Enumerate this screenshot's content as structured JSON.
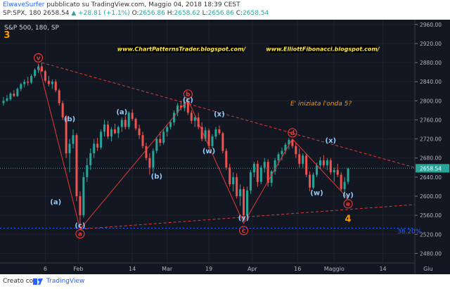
{
  "header": {
    "author": "ElwaveSurfer",
    "published": "pubblicato su TradingView.com, Maggio 04, 2018 18:39 CEST",
    "symbol": "SP:SPX, 180",
    "last": "2658.54",
    "change": "▲ +28.81 (+1.1%)",
    "o_label": "O:",
    "o": "2656.86",
    "h_label": "H:",
    "h": "2658.62",
    "l_label": "L:",
    "l": "2656.86",
    "c_label": "C:",
    "c": "2658.54"
  },
  "chart_data": {
    "type": "candlestick",
    "title": "S&P 500, 180, SP",
    "background": "#131722",
    "up_color": "#26a69a",
    "down_color": "#ef5350",
    "ylim": [
      2460,
      2970
    ],
    "y_ticks": [
      "2960.00",
      "2920.00",
      "2880.00",
      "2840.00",
      "2800.00",
      "2760.00",
      "2720.00",
      "2680.00",
      "2640.00",
      "2600.00",
      "2560.00",
      "2520.00",
      "2480.00"
    ],
    "y_tick_values": [
      2960,
      2920,
      2880,
      2840,
      2800,
      2760,
      2720,
      2680,
      2640,
      2600,
      2560,
      2520,
      2480
    ],
    "x_ticks": [
      "6",
      "Feb",
      "14",
      "Mar",
      "19",
      "Apr",
      "16",
      "Maggio",
      "14",
      "Giu"
    ],
    "x_tick_values": [
      6,
      15.5,
      31,
      41,
      53,
      65.5,
      78.5,
      89,
      103,
      116
    ],
    "last_price": "2658.54",
    "last_price_value": 2658.54,
    "fib_label": "38.20%",
    "fib_value": 2533,
    "links": [
      "www.ChartPatternsTrader.blogspot.com/",
      "www.ElliottFibonacci.blogspot.com/"
    ],
    "annotation": "E' iniziata l'onda 5?",
    "wave_labels": [
      {
        "text": "3",
        "x": -5,
        "y": 2932,
        "color": "#ff9800",
        "size": 13
      },
      {
        "text": "(b)",
        "x": 13,
        "y": 2757,
        "color": "#90caf9",
        "size": 10
      },
      {
        "text": "(a)",
        "x": 9,
        "y": 2583,
        "color": "#90caf9",
        "size": 10
      },
      {
        "text": "(c)",
        "x": 16,
        "y": 2534,
        "color": "#90caf9",
        "size": 10
      },
      {
        "text": "(a)",
        "x": 28,
        "y": 2772,
        "color": "#90caf9",
        "size": 10
      },
      {
        "text": "(b)",
        "x": 38,
        "y": 2637,
        "color": "#90caf9",
        "size": 10
      },
      {
        "text": "(c)",
        "x": 47,
        "y": 2797,
        "color": "#90caf9",
        "size": 10
      },
      {
        "text": "(x)",
        "x": 56,
        "y": 2767,
        "color": "#90caf9",
        "size": 10
      },
      {
        "text": "(w)",
        "x": 53,
        "y": 2690,
        "color": "#90caf9",
        "size": 10
      },
      {
        "text": "(y)",
        "x": 63,
        "y": 2550,
        "color": "#90caf9",
        "size": 10
      },
      {
        "text": "(x)",
        "x": 88,
        "y": 2712,
        "color": "#90caf9",
        "size": 10
      },
      {
        "text": "(w)",
        "x": 84,
        "y": 2602,
        "color": "#90caf9",
        "size": 10
      },
      {
        "text": "(y)",
        "x": 93,
        "y": 2598,
        "color": "#90caf9",
        "size": 10
      },
      {
        "text": "4",
        "x": 93,
        "y": 2546,
        "color": "#ff9800",
        "size": 13
      }
    ],
    "circle_labels": [
      {
        "text": "v",
        "x": 4,
        "y": 2890
      },
      {
        "text": "a",
        "x": 16,
        "y": 2521
      },
      {
        "text": "b",
        "x": 47,
        "y": 2814
      },
      {
        "text": "c",
        "x": 63,
        "y": 2528
      },
      {
        "text": "d",
        "x": 77,
        "y": 2733
      },
      {
        "text": "e",
        "x": 93,
        "y": 2584
      }
    ],
    "wave_path": [
      [
        4,
        2878
      ],
      [
        16,
        2531
      ],
      [
        47,
        2802
      ],
      [
        63,
        2543
      ],
      [
        77,
        2720
      ],
      [
        93,
        2595
      ]
    ],
    "resistance_line": [
      [
        5,
        2880
      ],
      [
        117,
        2650
      ]
    ],
    "support_line": [
      [
        16,
        2531
      ],
      [
        117,
        2585
      ]
    ],
    "candles": [
      [
        -6,
        2795,
        2808,
        2790,
        2800
      ],
      [
        -5,
        2800,
        2812,
        2798,
        2805
      ],
      [
        -4,
        2803,
        2818,
        2800,
        2815
      ],
      [
        -3,
        2815,
        2822,
        2808,
        2810
      ],
      [
        -2,
        2810,
        2828,
        2808,
        2825
      ],
      [
        -1,
        2825,
        2838,
        2820,
        2835
      ],
      [
        0,
        2835,
        2845,
        2828,
        2840
      ],
      [
        1,
        2840,
        2850,
        2832,
        2838
      ],
      [
        2,
        2838,
        2856,
        2835,
        2852
      ],
      [
        3,
        2852,
        2868,
        2848,
        2865
      ],
      [
        4,
        2865,
        2878,
        2858,
        2872
      ],
      [
        5,
        2872,
        2880,
        2860,
        2862
      ],
      [
        6,
        2862,
        2865,
        2838,
        2842
      ],
      [
        7,
        2842,
        2852,
        2830,
        2835
      ],
      [
        8,
        2835,
        2845,
        2825,
        2840
      ],
      [
        9,
        2840,
        2845,
        2818,
        2822
      ],
      [
        10,
        2822,
        2825,
        2790,
        2795
      ],
      [
        11,
        2795,
        2800,
        2760,
        2765
      ],
      [
        12,
        2765,
        2770,
        2680,
        2690
      ],
      [
        13,
        2690,
        2720,
        2650,
        2710
      ],
      [
        14,
        2710,
        2740,
        2700,
        2728
      ],
      [
        15,
        2728,
        2732,
        2590,
        2600
      ],
      [
        16,
        2600,
        2610,
        2532,
        2560
      ],
      [
        17,
        2560,
        2650,
        2555,
        2640
      ],
      [
        18,
        2640,
        2680,
        2630,
        2665
      ],
      [
        19,
        2665,
        2700,
        2655,
        2690
      ],
      [
        20,
        2690,
        2720,
        2680,
        2710
      ],
      [
        21,
        2710,
        2722,
        2695,
        2702
      ],
      [
        22,
        2702,
        2740,
        2698,
        2735
      ],
      [
        23,
        2735,
        2760,
        2725,
        2750
      ],
      [
        24,
        2750,
        2758,
        2720,
        2725
      ],
      [
        25,
        2725,
        2745,
        2715,
        2740
      ],
      [
        26,
        2740,
        2752,
        2730,
        2732
      ],
      [
        27,
        2732,
        2748,
        2722,
        2745
      ],
      [
        28,
        2745,
        2765,
        2735,
        2760
      ],
      [
        29,
        2760,
        2768,
        2740,
        2745
      ],
      [
        30,
        2745,
        2778,
        2740,
        2775
      ],
      [
        31,
        2775,
        2782,
        2758,
        2762
      ],
      [
        32,
        2762,
        2765,
        2738,
        2742
      ],
      [
        33,
        2742,
        2750,
        2720,
        2728
      ],
      [
        34,
        2728,
        2735,
        2700,
        2705
      ],
      [
        35,
        2705,
        2712,
        2675,
        2680
      ],
      [
        36,
        2680,
        2690,
        2645,
        2660
      ],
      [
        37,
        2660,
        2700,
        2650,
        2695
      ],
      [
        38,
        2695,
        2725,
        2690,
        2720
      ],
      [
        39,
        2720,
        2735,
        2705,
        2712
      ],
      [
        40,
        2712,
        2740,
        2708,
        2735
      ],
      [
        41,
        2735,
        2750,
        2725,
        2745
      ],
      [
        42,
        2745,
        2760,
        2740,
        2755
      ],
      [
        43,
        2755,
        2780,
        2748,
        2775
      ],
      [
        44,
        2775,
        2795,
        2768,
        2790
      ],
      [
        45,
        2790,
        2800,
        2780,
        2785
      ],
      [
        46,
        2785,
        2803,
        2778,
        2797
      ],
      [
        47,
        2797,
        2802,
        2770,
        2775
      ],
      [
        48,
        2775,
        2780,
        2752,
        2758
      ],
      [
        49,
        2758,
        2770,
        2745,
        2765
      ],
      [
        50,
        2765,
        2775,
        2740,
        2745
      ],
      [
        51,
        2745,
        2755,
        2715,
        2720
      ],
      [
        52,
        2720,
        2745,
        2715,
        2738
      ],
      [
        53,
        2738,
        2742,
        2700,
        2705
      ],
      [
        54,
        2705,
        2730,
        2700,
        2725
      ],
      [
        55,
        2725,
        2745,
        2720,
        2740
      ],
      [
        56,
        2740,
        2748,
        2728,
        2732
      ],
      [
        57,
        2732,
        2735,
        2690,
        2695
      ],
      [
        58,
        2695,
        2700,
        2655,
        2660
      ],
      [
        59,
        2660,
        2668,
        2620,
        2625
      ],
      [
        60,
        2625,
        2650,
        2610,
        2640
      ],
      [
        61,
        2640,
        2648,
        2595,
        2600
      ],
      [
        62,
        2600,
        2625,
        2580,
        2615
      ],
      [
        63,
        2615,
        2620,
        2548,
        2560
      ],
      [
        64,
        2560,
        2620,
        2555,
        2612
      ],
      [
        65,
        2612,
        2655,
        2605,
        2650
      ],
      [
        66,
        2650,
        2672,
        2640,
        2668
      ],
      [
        67,
        2668,
        2675,
        2620,
        2630
      ],
      [
        68,
        2630,
        2665,
        2625,
        2660
      ],
      [
        69,
        2660,
        2680,
        2650,
        2672
      ],
      [
        70,
        2672,
        2678,
        2620,
        2628
      ],
      [
        71,
        2628,
        2655,
        2620,
        2652
      ],
      [
        72,
        2652,
        2680,
        2645,
        2675
      ],
      [
        73,
        2675,
        2692,
        2665,
        2688
      ],
      [
        74,
        2688,
        2702,
        2675,
        2695
      ],
      [
        75,
        2695,
        2712,
        2688,
        2708
      ],
      [
        76,
        2708,
        2722,
        2698,
        2718
      ],
      [
        77,
        2718,
        2720,
        2700,
        2705
      ],
      [
        78,
        2705,
        2712,
        2680,
        2688
      ],
      [
        79,
        2688,
        2700,
        2660,
        2668
      ],
      [
        80,
        2668,
        2690,
        2660,
        2685
      ],
      [
        81,
        2685,
        2690,
        2640,
        2645
      ],
      [
        82,
        2645,
        2652,
        2610,
        2618
      ],
      [
        83,
        2618,
        2650,
        2615,
        2645
      ],
      [
        84,
        2645,
        2670,
        2640,
        2665
      ],
      [
        85,
        2665,
        2682,
        2658,
        2675
      ],
      [
        86,
        2675,
        2686,
        2660,
        2665
      ],
      [
        87,
        2665,
        2680,
        2655,
        2675
      ],
      [
        88,
        2675,
        2680,
        2645,
        2650
      ],
      [
        89,
        2650,
        2660,
        2630,
        2655
      ],
      [
        90,
        2655,
        2668,
        2640,
        2645
      ],
      [
        91,
        2645,
        2650,
        2610,
        2615
      ],
      [
        92,
        2615,
        2640,
        2596,
        2630
      ],
      [
        93,
        2630,
        2660,
        2625,
        2658
      ]
    ]
  },
  "footer": {
    "created_with": "Creato con",
    "brand": "TradingView"
  }
}
